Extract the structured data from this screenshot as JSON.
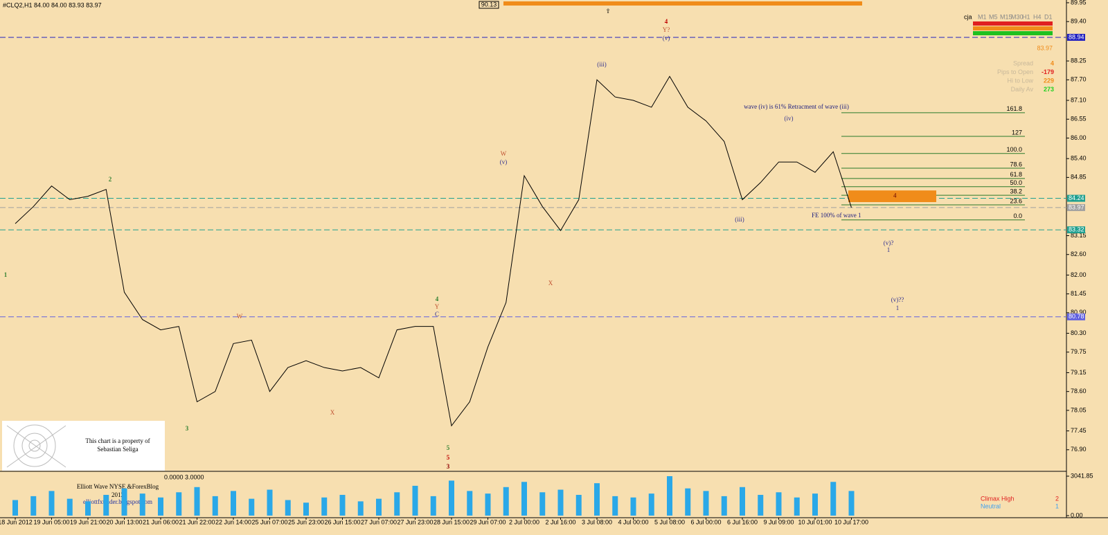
{
  "chart_data": {
    "type": "line",
    "header": "#CLQ2,H1  84.00 84.00 83.93 83.97",
    "categories": [
      "18 Jun 2012",
      null,
      "19 Jun 05:00",
      null,
      "19 Jun 21:00",
      null,
      "20 Jun 13:00",
      null,
      "21 Jun 06:00",
      null,
      "21 Jun 22:00",
      null,
      "22 Jun 14:00",
      null,
      "25 Jun 07:00",
      null,
      "25 Jun 23:00",
      null,
      "26 Jun 15:00",
      null,
      "27 Jun 07:00",
      null,
      "27 Jun 23:00",
      null,
      "28 Jun 15:00",
      null,
      "29 Jun 07:00",
      null,
      "2 Jul 00:00",
      null,
      "2 Jul 16:00",
      null,
      "3 Jul 08:00",
      null,
      "4 Jul 00:00",
      null,
      "5 Jul 08:00",
      null,
      "6 Jul 00:00",
      null,
      "6 Jul 16:00",
      null,
      "9 Jul 09:00",
      null,
      "10 Jul 01:00",
      null,
      "10 Jul 17:00"
    ],
    "series": [
      {
        "name": "CLQ2",
        "color": "#000000",
        "values": [
          83.5,
          84.0,
          84.6,
          84.2,
          84.3,
          84.5,
          81.5,
          80.7,
          80.4,
          80.5,
          78.3,
          78.6,
          80.0,
          80.1,
          78.6,
          79.3,
          79.5,
          79.3,
          79.2,
          79.3,
          79.0,
          80.4,
          80.5,
          80.5,
          77.6,
          78.3,
          79.9,
          81.2,
          84.9,
          84.0,
          83.3,
          84.2,
          87.7,
          87.2,
          87.1,
          86.9,
          87.8,
          86.9,
          86.5,
          85.9,
          84.2,
          84.7,
          85.3,
          85.3,
          85.0,
          85.6,
          83.97
        ]
      }
    ],
    "ylim": [
      76.29,
      90.03
    ],
    "yticks": [
      {
        "value": 89.95,
        "label": "89.95"
      },
      {
        "value": 89.4,
        "label": "89.40"
      },
      {
        "value": 88.25,
        "label": "88.25"
      },
      {
        "value": 87.7,
        "label": "87.70"
      },
      {
        "value": 87.1,
        "label": "87.10"
      },
      {
        "value": 86.55,
        "label": "86.55"
      },
      {
        "value": 86,
        "label": "86.00"
      },
      {
        "value": 85.4,
        "label": "85.40"
      },
      {
        "value": 84.85,
        "label": "84.85"
      },
      {
        "value": 83.15,
        "label": "83.15"
      },
      {
        "value": 82.6,
        "label": "82.60"
      },
      {
        "value": 82,
        "label": "82.00"
      },
      {
        "value": 81.45,
        "label": "81.45"
      },
      {
        "value": 80.9,
        "label": "80.90"
      },
      {
        "value": 80.3,
        "label": "80.30"
      },
      {
        "value": 79.75,
        "label": "79.75"
      },
      {
        "value": 79.15,
        "label": "79.15"
      },
      {
        "value": 78.6,
        "label": "78.60"
      },
      {
        "value": 78.05,
        "label": "78.05"
      },
      {
        "value": 77.45,
        "label": "77.45"
      },
      {
        "value": 76.9,
        "label": "76.90"
      }
    ],
    "levels": [
      {
        "value": 88.94,
        "color": "#2020c0"
      },
      {
        "value": 84.24,
        "color": "#20a090"
      },
      {
        "value": 83.97,
        "color": "#a0a0a0"
      },
      {
        "value": 83.32,
        "color": "#20a090"
      },
      {
        "value": 80.78,
        "color": "#6060e0"
      }
    ],
    "top_marker": "90.13",
    "fib_levels": [
      {
        "label": "161.8",
        "value": 86.74
      },
      {
        "label": "127",
        "value": 86.05
      },
      {
        "label": "100.0",
        "value": 85.55
      },
      {
        "label": "78.6",
        "value": 85.12
      },
      {
        "label": "61.8",
        "value": 84.82
      },
      {
        "label": "50.0",
        "value": 84.58
      },
      {
        "label": "38.2",
        "value": 84.33
      },
      {
        "label": "23.6",
        "value": 84.05
      },
      {
        "label": "0.0",
        "value": 83.61
      }
    ],
    "zone": {
      "label": "4",
      "top": 84.47,
      "bottom": 84.13,
      "color": "#f08c1a"
    },
    "annotations": [
      "wave (iv) is 61% Retracment of wave (iii)",
      "FE 100% of wave 1"
    ],
    "wave_labels": [
      {
        "text": "4",
        "color": "#c00000"
      },
      {
        "text": "Y?",
        "color": "#c05030"
      },
      {
        "text": "(v)",
        "color": "#303090"
      },
      {
        "text": "W",
        "color": "#c05030"
      },
      {
        "text": "(v)",
        "color": "#303090"
      },
      {
        "text": "4",
        "color": "#308030"
      },
      {
        "text": "Y",
        "color": "#c05030"
      },
      {
        "text": "C",
        "color": "#303090"
      },
      {
        "text": "5",
        "color": "#308030"
      },
      {
        "text": "5",
        "color": "#c00000"
      },
      {
        "text": "3",
        "color": "#900000"
      },
      {
        "text": "2",
        "color": "#308030"
      },
      {
        "text": "1",
        "color": "#308030"
      },
      {
        "text": "3",
        "color": "#308030"
      },
      {
        "text": "(iii)",
        "color": "#303090"
      },
      {
        "text": "(iv)",
        "color": "#303090"
      },
      {
        "text": "(iii)",
        "color": "#303090"
      },
      {
        "text": "X",
        "color": "#c05030"
      },
      {
        "text": "W",
        "color": "#c05030"
      },
      {
        "text": "X",
        "color": "#c05030"
      },
      {
        "text": "(v)?",
        "color": "#303090"
      },
      {
        "text": "1",
        "color": "#303090"
      },
      {
        "text": "(v)??",
        "color": "#303090"
      },
      {
        "text": "1",
        "color": "#303090"
      }
    ],
    "info": {
      "price": "83.97",
      "rows": [
        {
          "label": "Spread",
          "value": "4",
          "color": "#f08c1a"
        },
        {
          "label": "Pips to Open",
          "value": "-179",
          "color": "#e02020"
        },
        {
          "label": "Hi to Low",
          "value": "229",
          "color": "#f08c1a"
        },
        {
          "label": "Daily Av",
          "value": "273",
          "color": "#20d020"
        }
      ],
      "owner": "cja",
      "timeframes": [
        "M1",
        "M5",
        "M15",
        "M30",
        "H1",
        "H4",
        "D1"
      ]
    },
    "watermark": [
      "This chart is a property of",
      "Sebastian Seliga",
      "Elliott Wave NYSE &ForexBlog",
      "2012",
      "elliottfxtrader.blogspot.com"
    ],
    "volume": {
      "header": "0.0000 3.0000",
      "color": "#2aa8e8",
      "values": [
        1200,
        1500,
        1900,
        1300,
        1100,
        1600,
        2100,
        1700,
        1400,
        1800,
        2200,
        1500,
        1900,
        1300,
        2000,
        1200,
        1000,
        1400,
        1600,
        1100,
        1300,
        1800,
        2300,
        1500,
        2700,
        1900,
        1700,
        2200,
        2600,
        1800,
        2000,
        1600,
        2500,
        1500,
        1400,
        1700,
        3041.85,
        2100,
        1900,
        1500,
        2200,
        1600,
        1800,
        1400,
        1700,
        2600,
        1900
      ],
      "ylim": [
        0,
        3041.85
      ],
      "yticks": [
        {
          "value": 3041.85,
          "label": "3041.85"
        },
        {
          "value": 0,
          "label": "0.00"
        }
      ]
    },
    "legend": [
      {
        "name": "Climax High",
        "count": 2,
        "color": "#e02020"
      },
      {
        "name": "Neutral",
        "count": 1,
        "color": "#40a0f0"
      }
    ]
  }
}
